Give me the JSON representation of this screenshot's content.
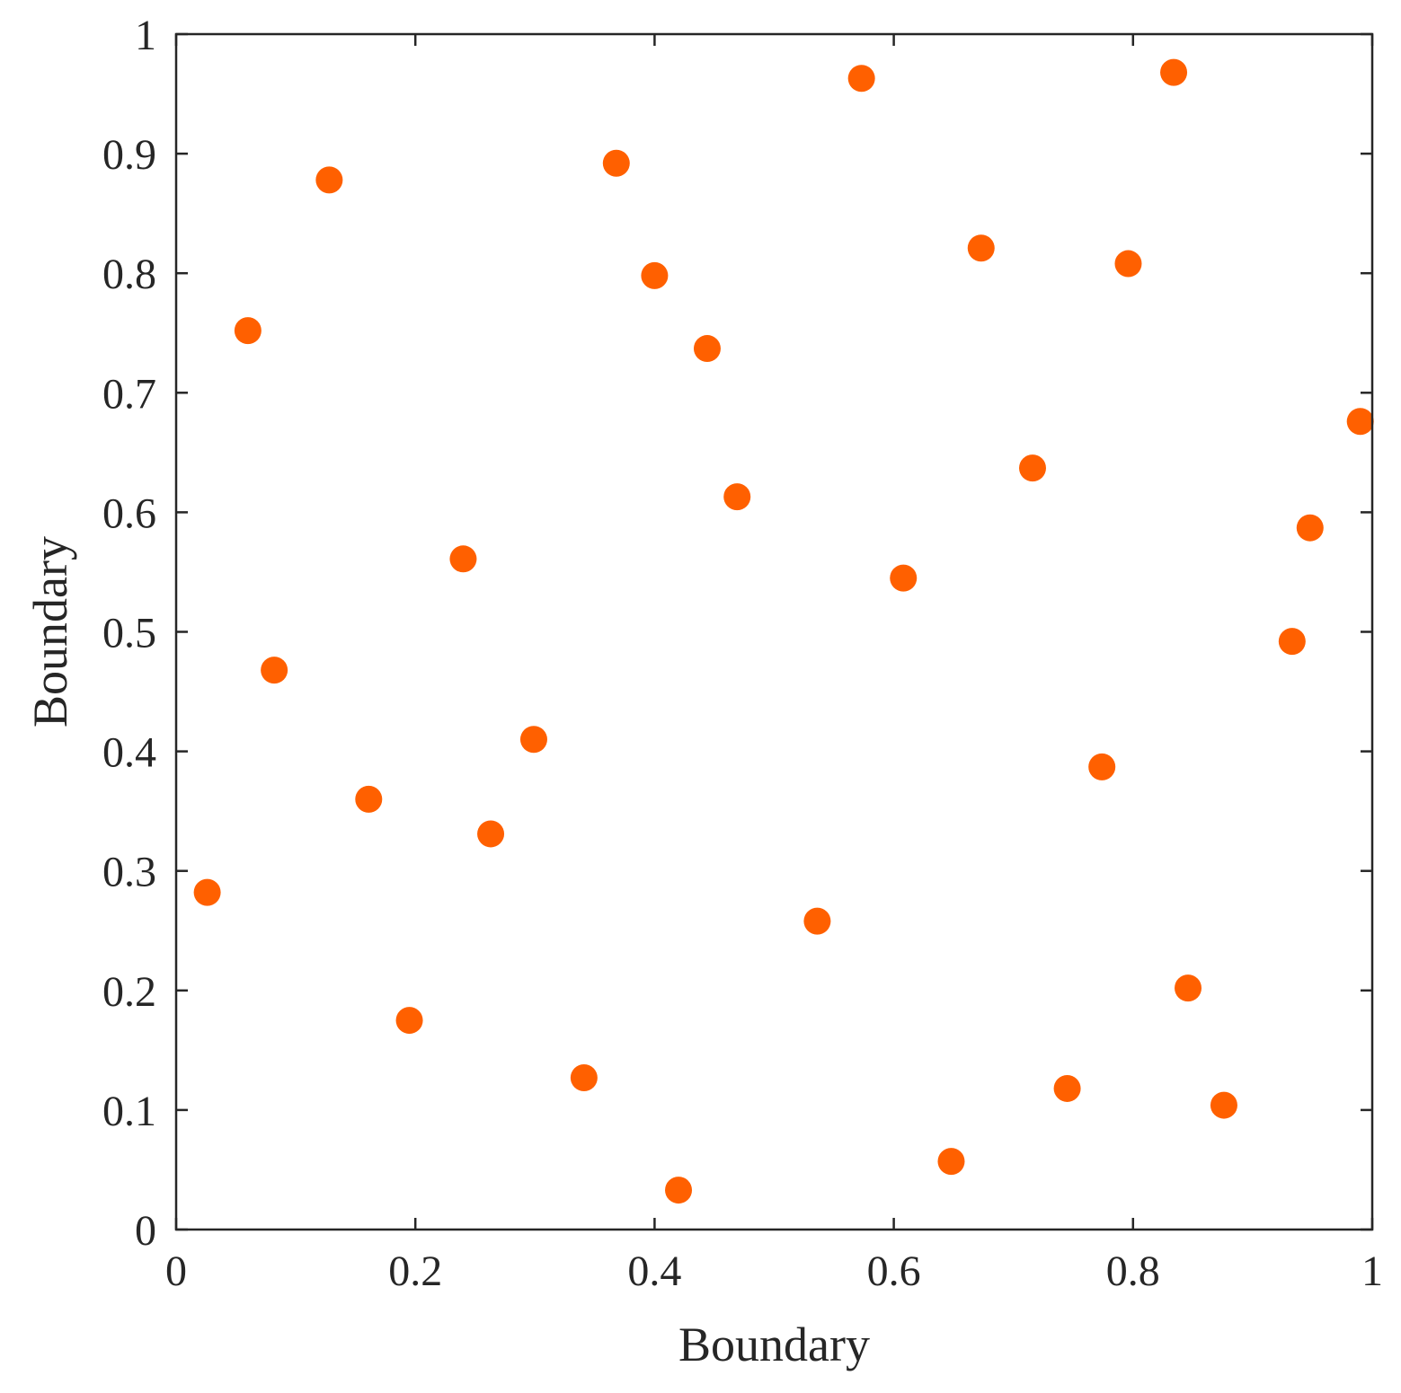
{
  "chart_data": {
    "type": "scatter",
    "title": "",
    "xlabel": "Boundary",
    "ylabel": "Boundary",
    "xlim": [
      0,
      1
    ],
    "ylim": [
      0,
      1
    ],
    "xticks": [
      0,
      0.2,
      0.4,
      0.6,
      0.8,
      1
    ],
    "yticks": [
      0,
      0.1,
      0.2,
      0.3,
      0.4,
      0.5,
      0.6,
      0.7,
      0.8,
      0.9,
      1
    ],
    "xtick_labels": [
      "0",
      "0.2",
      "0.4",
      "0.6",
      "0.8",
      "1"
    ],
    "ytick_labels": [
      "0",
      "0.1",
      "0.2",
      "0.3",
      "0.4",
      "0.5",
      "0.6",
      "0.7",
      "0.8",
      "0.9",
      "1"
    ],
    "grid": false,
    "marker_color": "#ff6000",
    "points": [
      {
        "x": 0.026,
        "y": 0.282
      },
      {
        "x": 0.06,
        "y": 0.752
      },
      {
        "x": 0.082,
        "y": 0.468
      },
      {
        "x": 0.128,
        "y": 0.878
      },
      {
        "x": 0.161,
        "y": 0.36
      },
      {
        "x": 0.195,
        "y": 0.175
      },
      {
        "x": 0.24,
        "y": 0.561
      },
      {
        "x": 0.263,
        "y": 0.331
      },
      {
        "x": 0.299,
        "y": 0.41
      },
      {
        "x": 0.341,
        "y": 0.127
      },
      {
        "x": 0.368,
        "y": 0.892
      },
      {
        "x": 0.4,
        "y": 0.798
      },
      {
        "x": 0.42,
        "y": 0.033
      },
      {
        "x": 0.444,
        "y": 0.737
      },
      {
        "x": 0.469,
        "y": 0.613
      },
      {
        "x": 0.536,
        "y": 0.258
      },
      {
        "x": 0.573,
        "y": 0.963
      },
      {
        "x": 0.608,
        "y": 0.545
      },
      {
        "x": 0.648,
        "y": 0.057
      },
      {
        "x": 0.673,
        "y": 0.821
      },
      {
        "x": 0.716,
        "y": 0.637
      },
      {
        "x": 0.745,
        "y": 0.118
      },
      {
        "x": 0.774,
        "y": 0.387
      },
      {
        "x": 0.796,
        "y": 0.808
      },
      {
        "x": 0.834,
        "y": 0.968
      },
      {
        "x": 0.846,
        "y": 0.202
      },
      {
        "x": 0.876,
        "y": 0.104
      },
      {
        "x": 0.933,
        "y": 0.492
      },
      {
        "x": 0.948,
        "y": 0.587
      },
      {
        "x": 0.99,
        "y": 0.676
      }
    ]
  }
}
